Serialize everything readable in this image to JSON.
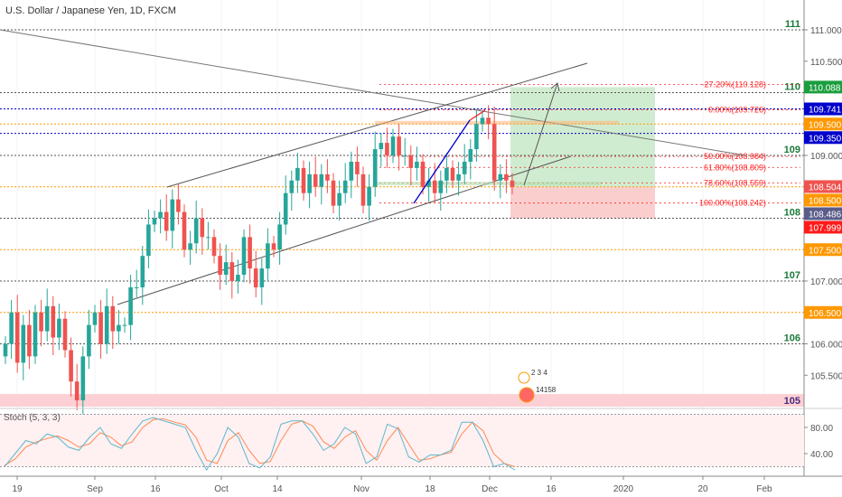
{
  "header": {
    "title": "U.S. Dollar / Japanese Yen, 1D, FXCM"
  },
  "indicator": {
    "label": "Stoch (5, 3, 3)",
    "ticks": [
      {
        "value": 80,
        "label": "80.00"
      },
      {
        "value": 40,
        "label": "40.00"
      }
    ]
  },
  "colors": {
    "up": "#26a69a",
    "down": "#ef5350",
    "orange": "#ff9800",
    "navy": "#0000cc",
    "grey": "#555555",
    "green_tag": "#1b9e3e",
    "fib": "#ff2222",
    "k": "#5fb8c9",
    "d": "#ff8a50"
  },
  "chart_data": {
    "type": "candlestick",
    "symbol": "USDJPY",
    "ylim": [
      104.9,
      111.6
    ],
    "closes": [
      106.0,
      106.5,
      105.7,
      106.3,
      105.8,
      106.5,
      106.2,
      106.6,
      106.1,
      106.4,
      105.9,
      105.4,
      105.1,
      105.8,
      106.3,
      106.5,
      106.0,
      106.6,
      106.2,
      106.3,
      106.3,
      106.9,
      106.9,
      107.4,
      107.9,
      108.0,
      108.1,
      107.8,
      108.3,
      108.1,
      107.5,
      107.6,
      108.0,
      107.7,
      107.7,
      107.4,
      107.1,
      107.3,
      107.0,
      107.1,
      107.7,
      107.2,
      106.9,
      107.2,
      107.6,
      107.5,
      107.9,
      108.4,
      108.6,
      108.8,
      108.4,
      108.7,
      108.5,
      108.7,
      108.6,
      108.2,
      108.4,
      108.6,
      108.9,
      108.7,
      108.2,
      108.5,
      109.1,
      109.2,
      109.0,
      109.3,
      109.0,
      109.0,
      108.8,
      108.9,
      108.5,
      108.6,
      108.4,
      108.6,
      108.8,
      108.6,
      108.7,
      108.9,
      109.1,
      109.5,
      109.6,
      109.5,
      108.6,
      108.7,
      108.6,
      108.5
    ],
    "x_ticks": [
      "19",
      "Sep",
      "16",
      "Oct",
      "14",
      "Nov",
      "18",
      "Dec",
      "16",
      "2020",
      "20",
      "Feb"
    ],
    "y_ticks": [
      "111.000",
      "110.500",
      "109.000",
      "107.000",
      "106.000",
      "105.500"
    ],
    "round_levels": [
      {
        "price": 111,
        "label": "111"
      },
      {
        "price": 110,
        "label": "110"
      },
      {
        "price": 109,
        "label": "109"
      },
      {
        "price": 108,
        "label": "108"
      },
      {
        "price": 107,
        "label": "107"
      },
      {
        "price": 106,
        "label": "106"
      },
      {
        "price": 105,
        "label": "105"
      }
    ],
    "levels": [
      {
        "price": 109.741,
        "color": "#0000cc"
      },
      {
        "price": 109.5,
        "color": "#ff9800"
      },
      {
        "price": 109.35,
        "color": "#0000cc"
      },
      {
        "price": 108.5,
        "color": "#ff9800"
      },
      {
        "price": 107.5,
        "color": "#ff9800"
      },
      {
        "price": 106.5,
        "color": "#ff9800"
      }
    ],
    "price_tags": [
      {
        "price": 110.088,
        "label": "110.088",
        "bg": "#1b9e3e",
        "fg": "#fff"
      },
      {
        "price": 109.741,
        "label": "109.741",
        "bg": "#0000cc",
        "fg": "#fff"
      },
      {
        "price": 109.5,
        "label": "109.500",
        "bg": "#ff9800",
        "fg": "#fff"
      },
      {
        "price": 109.35,
        "label": "109.350",
        "bg": "#0000cc",
        "fg": "#fff"
      },
      {
        "price": 108.504,
        "label": "108.504",
        "bg": "#ef5350",
        "fg": "#fff"
      },
      {
        "price": 108.5,
        "label": "108.500",
        "bg": "#ff9800",
        "fg": "#fff"
      },
      {
        "price": 108.486,
        "label": "108.486",
        "bg": "#5b5b8a",
        "fg": "#fff"
      },
      {
        "price": 107.999,
        "label": "107.999",
        "bg": "#ff1a1a",
        "fg": "#fff"
      },
      {
        "price": 107.5,
        "label": "107.500",
        "bg": "#ff9800",
        "fg": "#fff"
      },
      {
        "price": 106.5,
        "label": "106.500",
        "bg": "#ff9800",
        "fg": "#fff"
      }
    ],
    "fib": [
      {
        "price": 110.128,
        "label": "-27.20%(110.128)"
      },
      {
        "price": 109.726,
        "label": "0.00%(109.726)"
      },
      {
        "price": 108.984,
        "label": "50.00%(108.984)"
      },
      {
        "price": 108.809,
        "label": "61.80%(108.809)"
      },
      {
        "price": 108.559,
        "label": "78.60%(108.559)"
      },
      {
        "price": 108.242,
        "label": "100.00%(108.242)"
      }
    ],
    "position": {
      "entry": 108.5,
      "target": 110.088,
      "stop": 107.999
    },
    "events": {
      "top": "2 3 4",
      "bottom": "14158"
    },
    "stoch_k": [
      20,
      40,
      60,
      55,
      70,
      65,
      50,
      45,
      65,
      80,
      55,
      48,
      70,
      90,
      95,
      90,
      85,
      80,
      45,
      15,
      40,
      80,
      65,
      25,
      18,
      35,
      85,
      90,
      90,
      70,
      45,
      55,
      80,
      70,
      25,
      35,
      85,
      78,
      35,
      27,
      38,
      38,
      45,
      88,
      88,
      60,
      20,
      25,
      15
    ],
    "stoch_d": [
      22,
      32,
      50,
      58,
      63,
      67,
      60,
      50,
      55,
      72,
      65,
      52,
      58,
      80,
      92,
      93,
      88,
      84,
      65,
      30,
      25,
      60,
      72,
      45,
      25,
      28,
      60,
      85,
      90,
      82,
      58,
      48,
      65,
      75,
      45,
      30,
      60,
      80,
      55,
      30,
      32,
      38,
      42,
      70,
      88,
      75,
      40,
      25,
      20
    ]
  }
}
